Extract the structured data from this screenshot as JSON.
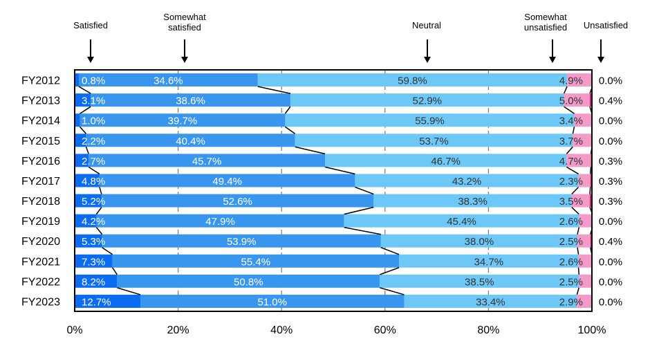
{
  "chart_data": {
    "type": "bar",
    "orientation": "horizontal",
    "stacked": "percent",
    "categories": [
      "FY2012",
      "FY2013",
      "FY2014",
      "FY2015",
      "FY2016",
      "FY2017",
      "FY2018",
      "FY2019",
      "FY2020",
      "FY2021",
      "FY2022",
      "FY2023"
    ],
    "series": [
      {
        "name": "Satisfied",
        "color": "#0a6cf0",
        "values": [
          0.8,
          3.1,
          1.0,
          2.2,
          2.7,
          4.8,
          5.2,
          4.2,
          5.3,
          7.3,
          8.2,
          12.7
        ],
        "labels": [
          "0.8%",
          "3.1%",
          "1.0%",
          "2.2%",
          "2.7%",
          "4.8%",
          "5.2%",
          "4.2%",
          "5.3%",
          "7.3%",
          "8.2%",
          "12.7%"
        ]
      },
      {
        "name": "Somewhat satisfied",
        "color": "#3896ef",
        "values": [
          34.6,
          38.6,
          39.7,
          40.4,
          45.7,
          49.4,
          52.6,
          47.9,
          53.9,
          55.4,
          50.8,
          51.0
        ],
        "labels": [
          "34.6%",
          "38.6%",
          "39.7%",
          "40.4%",
          "45.7%",
          "49.4%",
          "52.6%",
          "47.9%",
          "53.9%",
          "55.4%",
          "50.8%",
          "51.0%"
        ]
      },
      {
        "name": "Neutral",
        "color": "#6ec8f7",
        "values": [
          59.8,
          52.9,
          55.9,
          53.7,
          46.7,
          43.2,
          38.3,
          45.4,
          38.0,
          34.7,
          38.5,
          33.4
        ],
        "labels": [
          "59.8%",
          "52.9%",
          "55.9%",
          "53.7%",
          "46.7%",
          "43.2%",
          "38.3%",
          "45.4%",
          "38.0%",
          "34.7%",
          "38.5%",
          "33.4%"
        ]
      },
      {
        "name": "Somewhat unsatisfied",
        "color": "#f49ac8",
        "values": [
          4.9,
          5.0,
          3.4,
          3.7,
          4.7,
          2.3,
          3.5,
          2.6,
          2.5,
          2.6,
          2.5,
          2.9
        ],
        "labels": [
          "4.9%",
          "5.0%",
          "3.4%",
          "3.7%",
          "4.7%",
          "2.3%",
          "3.5%",
          "2.6%",
          "2.5%",
          "2.6%",
          "2.5%",
          "2.9%"
        ]
      },
      {
        "name": "Unsatisfied",
        "color": "#e0196e",
        "values": [
          0.0,
          0.4,
          0.0,
          0.0,
          0.3,
          0.3,
          0.3,
          0.0,
          0.4,
          0.0,
          0.0,
          0.0
        ],
        "labels": [
          "0.0%",
          "0.4%",
          "0.0%",
          "0.0%",
          "0.3%",
          "0.3%",
          "0.3%",
          "0.0%",
          "0.4%",
          "0.0%",
          "0.0%",
          "0.0%"
        ]
      }
    ],
    "header_labels": [
      {
        "lines": [
          "Satisfied"
        ]
      },
      {
        "lines": [
          "Somewhat",
          "satisfied"
        ]
      },
      {
        "lines": [
          "Neutral"
        ]
      },
      {
        "lines": [
          "Somewhat",
          "unsatisfied"
        ]
      },
      {
        "lines": [
          "Unsatisfied"
        ]
      }
    ],
    "xticks": [
      "0%",
      "20%",
      "40%",
      "60%",
      "80%",
      "100%"
    ],
    "xlim": [
      0,
      100
    ],
    "gridlines": true,
    "legend": "top",
    "title": "",
    "xlabel": "",
    "ylabel": ""
  }
}
